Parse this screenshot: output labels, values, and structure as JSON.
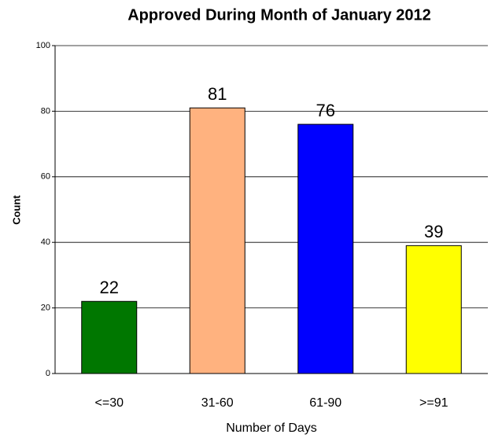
{
  "chart_data": {
    "type": "bar",
    "title": "Approved During Month of January 2012",
    "x_label": "Number of Days",
    "y_label": "Count",
    "categories": [
      "<=30",
      "31-60",
      "61-90",
      ">=91"
    ],
    "values": [
      22,
      81,
      76,
      39
    ],
    "colors": [
      "#007700",
      "#ffb27f",
      "#0000ff",
      "#ffff00"
    ],
    "ylim": [
      0,
      100
    ],
    "yticks": [
      0,
      20,
      40,
      60,
      80,
      100
    ],
    "grid": true
  }
}
